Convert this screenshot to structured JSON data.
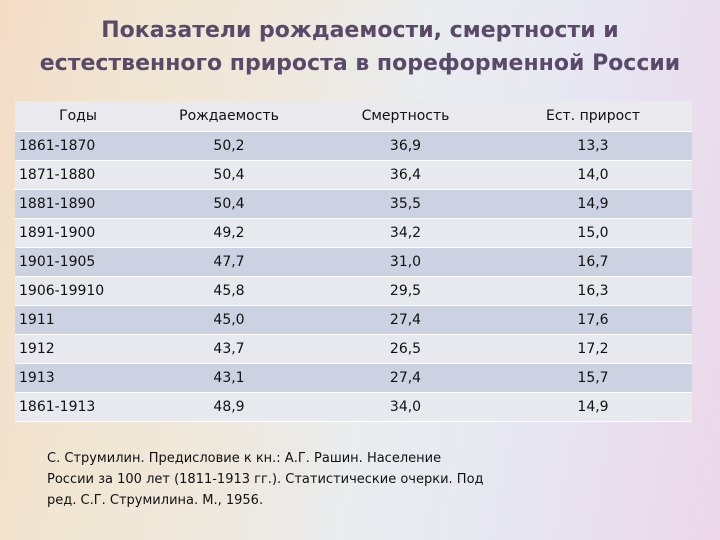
{
  "title": {
    "line1": "Показатели рождаемости, смертности и",
    "line2": "естественного прироста в пореформенной России"
  },
  "table": {
    "headers": [
      "Годы",
      "Рождаемость",
      "Смертность",
      "Ест. прирост"
    ],
    "rows": [
      [
        "1861-1870",
        "50,2",
        "36,9",
        "13,3"
      ],
      [
        "1871-1880",
        "50,4",
        "36,4",
        "14,0"
      ],
      [
        "1881-1890",
        "50,4",
        "35,5",
        "14,9"
      ],
      [
        "1891-1900",
        "49,2",
        "34,2",
        "15,0"
      ],
      [
        "1901-1905",
        "47,7",
        "31,0",
        "16,7"
      ],
      [
        "1906-19910",
        "45,8",
        "29,5",
        "16,3"
      ],
      [
        "1911",
        "45,0",
        "27,4",
        "17,6"
      ],
      [
        "1912",
        "43,7",
        "26,5",
        "17,2"
      ],
      [
        "1913",
        "43,1",
        "27,4",
        "15,7"
      ],
      [
        "1861-1913",
        "48,9",
        "34,0",
        "14,9"
      ]
    ]
  },
  "source": {
    "line1": "С. Струмилин. Предисловие к кн.: А.Г. Рашин. Население",
    "line2": "России за 100 лет (1811-1913 гг.). Статистические очерки. Под",
    "line3": "ред. С.Г. Струмилина. М., 1956."
  },
  "colors": {
    "title": "#5a4a6a",
    "row_dark": "#cdd2e3",
    "row_light": "#e8e9ef",
    "header_bg": "#e9e9ee"
  }
}
